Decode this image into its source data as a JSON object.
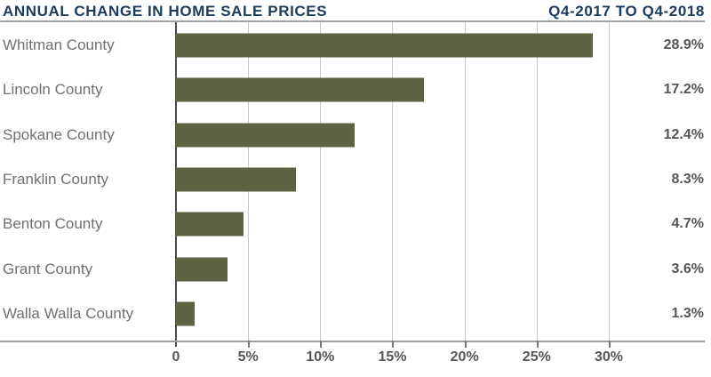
{
  "header": {
    "title": "ANNUAL CHANGE IN HOME SALE PRICES",
    "period": "Q4-2017 TO Q4-2018"
  },
  "chart_data": {
    "type": "bar",
    "orientation": "horizontal",
    "title": "ANNUAL CHANGE IN HOME SALE PRICES",
    "subtitle": "Q4-2017 TO Q4-2018",
    "categories": [
      "Whitman County",
      "Lincoln County",
      "Spokane County",
      "Franklin County",
      "Benton County",
      "Grant County",
      "Walla Walla County"
    ],
    "values": [
      28.9,
      17.2,
      12.4,
      8.3,
      4.7,
      3.6,
      1.3
    ],
    "value_labels": [
      "28.9%",
      "17.2%",
      "12.4%",
      "8.3%",
      "4.7%",
      "3.6%",
      "1.3%"
    ],
    "xlabel": "",
    "ylabel": "",
    "xlim": [
      0,
      36.6
    ],
    "x_ticks": [
      {
        "label": "0",
        "value": 0
      },
      {
        "label": "5%",
        "value": 5
      },
      {
        "label": "10%",
        "value": 10
      },
      {
        "label": "15%",
        "value": 15
      },
      {
        "label": "20%",
        "value": 20
      },
      {
        "label": "25%",
        "value": 25
      },
      {
        "label": "30%",
        "value": 30
      }
    ],
    "grid": "vertical",
    "legend": false,
    "colors": {
      "background": "#FFFFFF",
      "bar": "#5C6342",
      "title": "#1C3B5E",
      "category_label": "#6F7073",
      "value_label": "#55565A",
      "gridline": "#C8C9CB",
      "zero_line": "#4B4C4E",
      "axis_line": "#9B9DA0",
      "top_rule": "#A0A2A4",
      "tick_mark": "#77787A"
    }
  }
}
